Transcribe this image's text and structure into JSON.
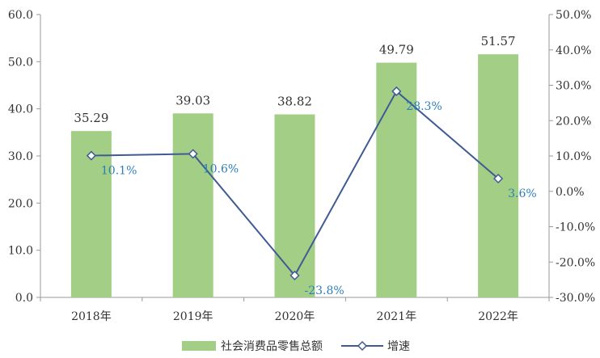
{
  "chart_data": {
    "type": "bar",
    "categories": [
      "2018年",
      "2019年",
      "2020年",
      "2021年",
      "2022年"
    ],
    "series": [
      {
        "name": "社会消费品零售总额",
        "type": "bar",
        "axis": "left",
        "values": [
          35.29,
          39.03,
          38.82,
          49.79,
          51.57
        ],
        "labels": [
          "35.29",
          "39.03",
          "38.82",
          "49.79",
          "51.57"
        ]
      },
      {
        "name": "增速",
        "type": "line",
        "axis": "right",
        "values": [
          10.1,
          10.6,
          -23.8,
          28.3,
          3.6
        ],
        "labels": [
          "10.1%",
          "10.6%",
          "-23.8%",
          "28.3%",
          "3.6%"
        ]
      }
    ],
    "left_axis": {
      "ylim": [
        0,
        60
      ],
      "ticks": [
        0,
        10,
        20,
        30,
        40,
        50,
        60
      ],
      "tick_labels": [
        "0.0",
        "10.0",
        "20.0",
        "30.0",
        "40.0",
        "50.0",
        "60.0"
      ]
    },
    "right_axis": {
      "ylim": [
        -30,
        50
      ],
      "ticks": [
        -30,
        -20,
        -10,
        0,
        10,
        20,
        30,
        40,
        50
      ],
      "tick_labels": [
        "-30.0%",
        "-20.0%",
        "-10.0%",
        "0.0%",
        "10.0%",
        "20.0%",
        "30.0%",
        "40.0%",
        "50.0%"
      ]
    },
    "grid": false,
    "legend_position": "bottom",
    "colors": {
      "bar": "#a2cf85",
      "line": "#3f5a94",
      "line_label": "#2a7fb8",
      "axis": "#9a9a9a"
    }
  }
}
